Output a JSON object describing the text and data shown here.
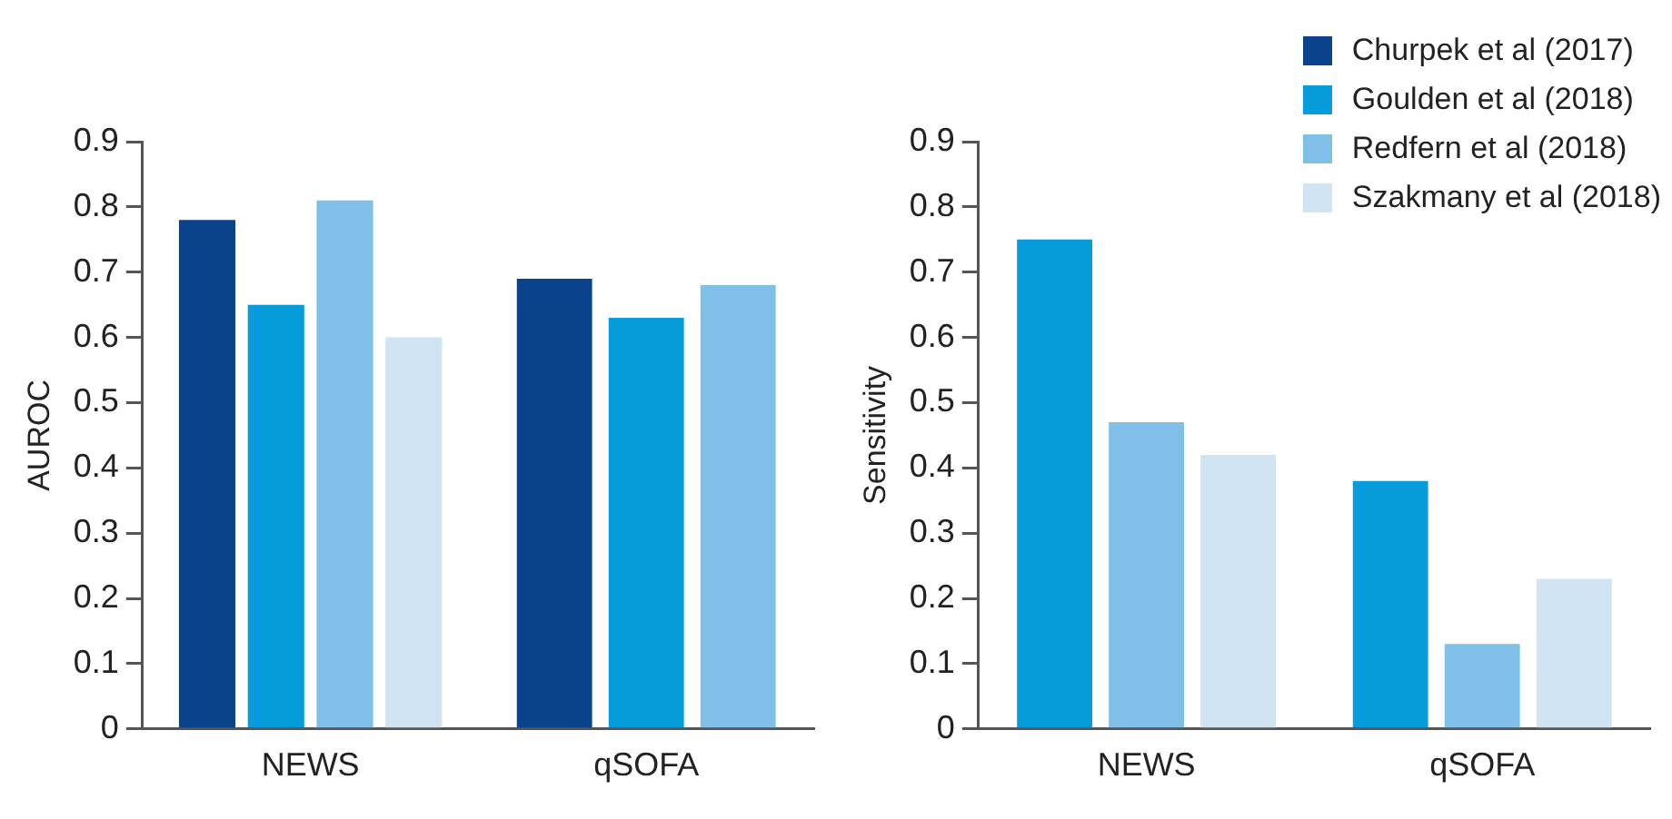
{
  "chart_data": [
    {
      "type": "bar",
      "ylabel": "AUROC",
      "categories": [
        "NEWS",
        "qSOFA"
      ],
      "ylim": [
        0,
        0.9
      ],
      "yticks": [
        0,
        0.1,
        0.2,
        0.3,
        0.4,
        0.5,
        0.6,
        0.7,
        0.8,
        0.9
      ],
      "grid": false,
      "series": [
        {
          "color": "#0b428c",
          "values": [
            0.78,
            0.69
          ]
        },
        {
          "color": "#079cdb",
          "values": [
            0.65,
            0.63
          ]
        },
        {
          "color": "#80bfe8",
          "values": [
            0.81,
            0.68
          ]
        },
        {
          "color": "#d0e4f4",
          "values": [
            0.6,
            null
          ]
        }
      ]
    },
    {
      "type": "bar",
      "ylabel": "Sensitivity",
      "categories": [
        "NEWS",
        "qSOFA"
      ],
      "ylim": [
        0,
        0.9
      ],
      "yticks": [
        0,
        0.1,
        0.2,
        0.3,
        0.4,
        0.5,
        0.6,
        0.7,
        0.8,
        0.9
      ],
      "grid": false,
      "legend": "top right",
      "series": [
        {
          "name": "Churpek et al (2017)",
          "color": "#0b428c",
          "values": [
            null,
            null
          ]
        },
        {
          "name": "Goulden et al (2018)",
          "color": "#079cdb",
          "values": [
            0.75,
            0.38
          ]
        },
        {
          "name": "Redfern et al (2018)",
          "color": "#80bfe8",
          "values": [
            0.47,
            0.13
          ]
        },
        {
          "name": "Szakmany et al (2018)",
          "color": "#d0e4f4",
          "values": [
            0.42,
            0.23
          ]
        }
      ]
    }
  ]
}
